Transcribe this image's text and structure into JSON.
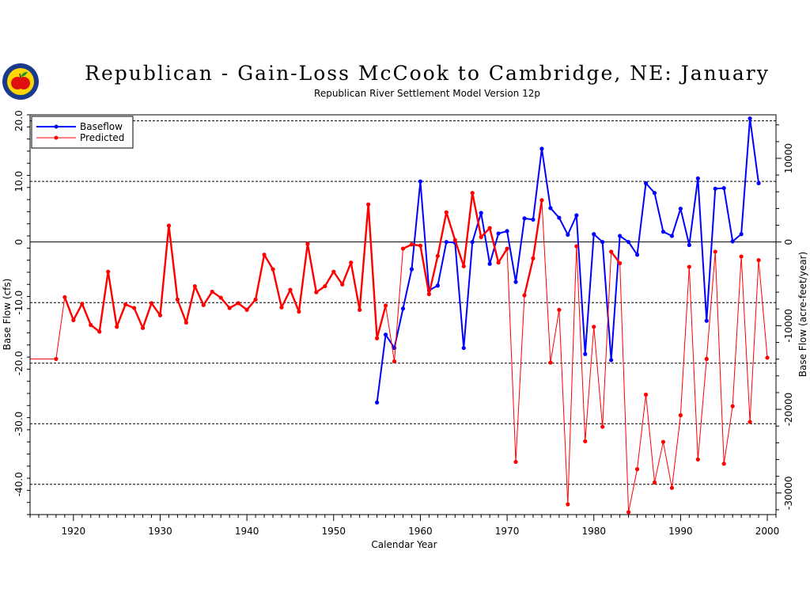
{
  "header": {
    "title": "Republican - Gain-Loss McCook to Cambridge, NE: January",
    "subtitle": "Republican River Settlement Model Version 12p"
  },
  "logo": {
    "icon": "apple-seal-icon",
    "colors": {
      "ring": "#1a3b8c",
      "fill": "#ffd600",
      "apple": "#e01010"
    }
  },
  "chart_data": {
    "type": "line",
    "xlabel": "Calendar Year",
    "ylabel": "Base Flow (cfs)",
    "ylabel_right": "Base Flow (acre-feet/year)",
    "xlim": [
      1915,
      2001
    ],
    "ylim": [
      -45,
      21
    ],
    "x_ticks": [
      1920,
      1930,
      1940,
      1950,
      1960,
      1970,
      1980,
      1990,
      2000
    ],
    "y_ticks": [
      20,
      10,
      0,
      -10,
      -20,
      -30,
      -40
    ],
    "y_tick_labels": [
      "20.0",
      "10.0",
      "0",
      "-10.0",
      "-20.0",
      "-30.0",
      "-40.0"
    ],
    "y2_ticks": [
      10000,
      0,
      -10000,
      -20000,
      -30000
    ],
    "y2_tick_labels": [
      "10000",
      "0",
      "-10000",
      "-20000",
      "-30000"
    ],
    "y2_per_y1": 724.0,
    "grid": "horizontal-dashed",
    "legend_position": "top-left",
    "series": [
      {
        "name": "Baseflow",
        "color": "#0000ff",
        "x": [
          1955,
          1956,
          1957,
          1958,
          1959,
          1960,
          1961,
          1962,
          1963,
          1964,
          1965,
          1966,
          1967,
          1968,
          1969,
          1970,
          1971,
          1972,
          1973,
          1974,
          1975,
          1976,
          1977,
          1978,
          1979,
          1980,
          1981,
          1982,
          1983,
          1984,
          1985,
          1986,
          1987,
          1988,
          1989,
          1990,
          1991,
          1992,
          1993,
          1994,
          1995,
          1996,
          1997,
          1998,
          1999
        ],
        "values": [
          -26.5,
          -15.3,
          -17.5,
          -11.0,
          -4.5,
          10.0,
          -8.0,
          -7.2,
          0.0,
          -0.1,
          -17.5,
          0.0,
          4.8,
          -3.6,
          1.4,
          1.8,
          -6.6,
          3.9,
          3.7,
          15.4,
          5.6,
          4.0,
          1.2,
          4.4,
          -18.5,
          1.3,
          0.0,
          -19.5,
          1.0,
          0.0,
          -2.1,
          9.7,
          8.1,
          1.7,
          1.0,
          5.5,
          -0.5,
          10.5,
          -13.0,
          8.8,
          8.9,
          0.1,
          1.3,
          20.4,
          9.7
        ]
      },
      {
        "name": "Predicted",
        "color": "#ff0000",
        "x": [
          1915,
          1918,
          1919,
          1920,
          1921,
          1922,
          1923,
          1924,
          1925,
          1926,
          1927,
          1928,
          1929,
          1930,
          1931,
          1932,
          1933,
          1934,
          1935,
          1936,
          1937,
          1938,
          1939,
          1940,
          1941,
          1942,
          1943,
          1944,
          1945,
          1946,
          1947,
          1948,
          1949,
          1950,
          1951,
          1952,
          1953,
          1954,
          1955,
          1956,
          1957,
          1958,
          1959,
          1960,
          1961,
          1962,
          1963,
          1964,
          1965,
          1966,
          1967,
          1968,
          1969,
          1970,
          1971,
          1972,
          1973,
          1974,
          1975,
          1976,
          1977,
          1978,
          1979,
          1980,
          1981,
          1982,
          1983,
          1984,
          1985,
          1986,
          1987,
          1988,
          1989,
          1990,
          1991,
          1992,
          1993,
          1994,
          1995,
          1996,
          1997,
          1998,
          1999,
          2000
        ],
        "values": [
          -19.3,
          -19.3,
          -9.1,
          -12.9,
          -10.2,
          -13.7,
          -14.8,
          -4.9,
          -14.0,
          -10.3,
          -10.9,
          -14.2,
          -10.1,
          -12.1,
          2.7,
          -9.5,
          -13.3,
          -7.3,
          -10.4,
          -8.2,
          -9.2,
          -10.9,
          -10.1,
          -11.2,
          -9.5,
          -2.1,
          -4.5,
          -10.8,
          -7.9,
          -11.5,
          -0.3,
          -8.3,
          -7.3,
          -4.9,
          -7.0,
          -3.4,
          -11.2,
          6.2,
          -15.9,
          -10.5,
          -19.7,
          -1.1,
          -0.4,
          -0.6,
          -8.6,
          -2.3,
          4.9,
          0.3,
          -4.0,
          8.1,
          0.8,
          2.3,
          -3.4,
          -1.1,
          -36.3,
          -8.8,
          -2.7,
          6.9,
          -19.9,
          -11.2,
          -43.3,
          -0.7,
          -32.9,
          -14.0,
          -30.5,
          -1.6,
          -3.5,
          -44.6,
          -37.5,
          -25.2,
          -39.7,
          -33.0,
          -40.6,
          -28.6,
          -4.1,
          -35.9,
          -19.3,
          -1.6,
          -36.6,
          -27.1,
          -2.4,
          -29.7,
          -3.0,
          -19.1
        ]
      }
    ]
  }
}
